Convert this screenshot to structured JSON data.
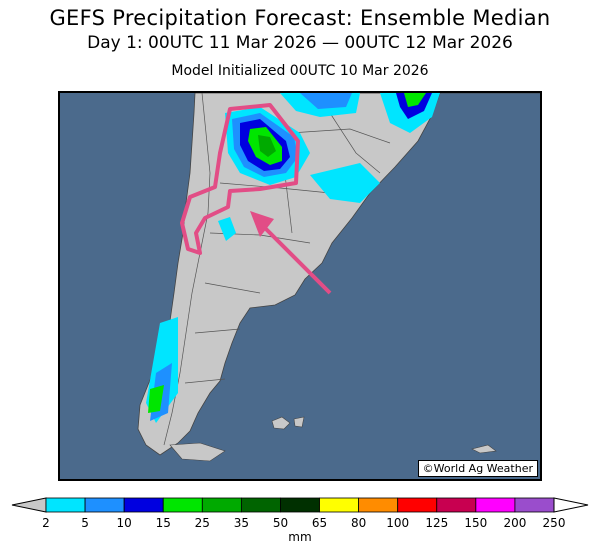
{
  "title": {
    "line1": "GEFS Precipitation Forecast: Ensemble Median",
    "line2": "Day 1: 00UTC 11 Mar 2026 — 00UTC 12 Mar 2026",
    "line3": "Model Initialized 00UTC 10 Mar 2026"
  },
  "map": {
    "region": "Southern South America (Argentina / Chile)",
    "credit": "©World Ag Weather",
    "ocean_color": "#4b6a8c",
    "land_color": "#c8c8c8",
    "annotation_color": "#e24d86"
  },
  "legend": {
    "unit": "mm",
    "ticks": [
      "2",
      "5",
      "10",
      "15",
      "25",
      "35",
      "50",
      "65",
      "80",
      "100",
      "125",
      "150",
      "200",
      "250"
    ],
    "colors": [
      "#00e5ff",
      "#1e90ff",
      "#0000e0",
      "#00e600",
      "#00aa00",
      "#006400",
      "#003000",
      "#ffff00",
      "#ff8c00",
      "#ff0000",
      "#c80050",
      "#ff00ff",
      "#9a4dcc"
    ]
  }
}
